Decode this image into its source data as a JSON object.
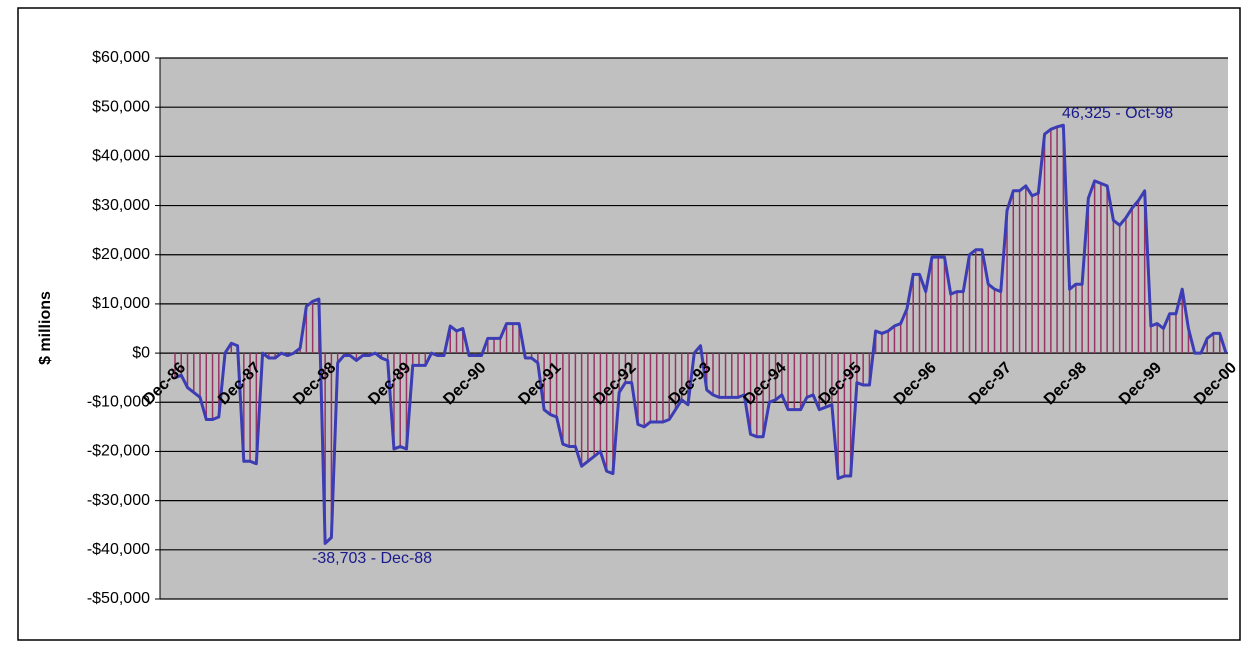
{
  "chart_data": {
    "type": "line",
    "y_label": "$ millions",
    "categories": [
      "Dec-86",
      null,
      null,
      null,
      null,
      null,
      null,
      null,
      null,
      null,
      null,
      null,
      "Dec-87",
      null,
      null,
      null,
      null,
      null,
      null,
      null,
      null,
      null,
      null,
      null,
      "Dec-88",
      null,
      null,
      null,
      null,
      null,
      null,
      null,
      null,
      null,
      null,
      null,
      "Dec-89",
      null,
      null,
      null,
      null,
      null,
      null,
      null,
      null,
      null,
      null,
      null,
      "Dec-90",
      null,
      null,
      null,
      null,
      null,
      null,
      null,
      null,
      null,
      null,
      null,
      "Dec-91",
      null,
      null,
      null,
      null,
      null,
      null,
      null,
      null,
      null,
      null,
      null,
      "Dec-92",
      null,
      null,
      null,
      null,
      null,
      null,
      null,
      null,
      null,
      null,
      null,
      "Dec-93",
      null,
      null,
      null,
      null,
      null,
      null,
      null,
      null,
      null,
      null,
      null,
      "Dec-94",
      null,
      null,
      null,
      null,
      null,
      null,
      null,
      null,
      null,
      null,
      null,
      "Dec-95",
      null,
      null,
      null,
      null,
      null,
      null,
      null,
      null,
      null,
      null,
      null,
      "Dec-96",
      null,
      null,
      null,
      null,
      null,
      null,
      null,
      null,
      null,
      null,
      null,
      "Dec-97",
      null,
      null,
      null,
      null,
      null,
      null,
      null,
      null,
      null,
      null,
      null,
      "Dec-98",
      null,
      null,
      null,
      null,
      null,
      null,
      null,
      null,
      null,
      null,
      null,
      "Dec-99",
      null,
      null,
      null,
      null,
      null,
      null,
      null,
      null,
      null,
      null,
      null,
      "Dec-00"
    ],
    "values": [
      -5000,
      -4500,
      -7000,
      -8000,
      -9000,
      -13500,
      -13500,
      -13000,
      0,
      2000,
      1500,
      -22000,
      -22000,
      -22500,
      0,
      -1000,
      -1000,
      0,
      -500,
      0,
      1000,
      9500,
      10500,
      11000,
      -38703,
      -37500,
      -2000,
      -500,
      -500,
      -1500,
      -500,
      -500,
      0,
      -1000,
      -1500,
      -19500,
      -19000,
      -19500,
      -2500,
      -2500,
      -2500,
      0,
      -500,
      -500,
      5500,
      4500,
      5000,
      -500,
      -500,
      -500,
      3000,
      3000,
      3000,
      6000,
      6000,
      6000,
      -1000,
      -1000,
      -2000,
      -11500,
      -12500,
      -13000,
      -18500,
      -19000,
      -19000,
      -23000,
      -22000,
      -21000,
      -20000,
      -24000,
      -24500,
      -8000,
      -6000,
      -6000,
      -14500,
      -15000,
      -14000,
      -14000,
      -14000,
      -13500,
      -11500,
      -9500,
      -10500,
      0,
      1500,
      -7500,
      -8500,
      -9000,
      -9000,
      -9000,
      -9000,
      -8500,
      -16500,
      -17000,
      -17000,
      -10000,
      -9500,
      -8500,
      -11500,
      -11500,
      -11500,
      -9000,
      -8500,
      -11500,
      -11000,
      -10500,
      -25500,
      -25000,
      -25000,
      -6000,
      -6500,
      -6500,
      4500,
      4000,
      4500,
      5500,
      6000,
      9000,
      16000,
      16000,
      12500,
      19500,
      19500,
      19500,
      12000,
      12500,
      12500,
      20000,
      21000,
      21000,
      14000,
      13000,
      12500,
      29000,
      33000,
      33000,
      34000,
      32000,
      32500,
      44500,
      45500,
      46000,
      46325,
      13000,
      14000,
      14000,
      31500,
      35000,
      34500,
      34000,
      27000,
      26000,
      27500,
      29500,
      31000,
      33000,
      5500,
      6000,
      5000,
      8000,
      8000,
      13000,
      5000,
      0,
      0,
      3000,
      4000,
      4000,
      0
    ],
    "color": "#3c3cb4",
    "drop_line_color": "#993366",
    "ylim": [
      -50000,
      60000
    ],
    "yticks": [
      {
        "value": -50000,
        "label": "-$50,000"
      },
      {
        "value": -40000,
        "label": "-$40,000"
      },
      {
        "value": -30000,
        "label": "-$30,000"
      },
      {
        "value": -20000,
        "label": "-$20,000"
      },
      {
        "value": -10000,
        "label": "-$10,000"
      },
      {
        "value": 0,
        "label": "$0"
      },
      {
        "value": 10000,
        "label": "$10,000"
      },
      {
        "value": 20000,
        "label": "$20,000"
      },
      {
        "value": 30000,
        "label": "$30,000"
      },
      {
        "value": 40000,
        "label": "$40,000"
      },
      {
        "value": 50000,
        "label": "$50,000"
      },
      {
        "value": 60000,
        "label": "$60,000"
      }
    ],
    "grid": true,
    "annotations": [
      {
        "text": "46,325 - Oct-98"
      },
      {
        "text": "-38,703 - Dec-88"
      }
    ]
  }
}
